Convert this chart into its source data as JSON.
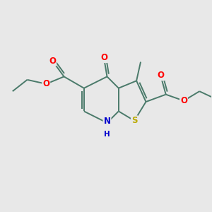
{
  "background_color": "#e8e8e8",
  "bond_color": "#4a7a6a",
  "bond_width": 1.4,
  "atom_colors": {
    "O": "#ff0000",
    "N": "#0000cc",
    "S": "#bbaa00",
    "C": "#4a7a6a"
  },
  "figsize": [
    3.0,
    3.0
  ],
  "dpi": 100
}
